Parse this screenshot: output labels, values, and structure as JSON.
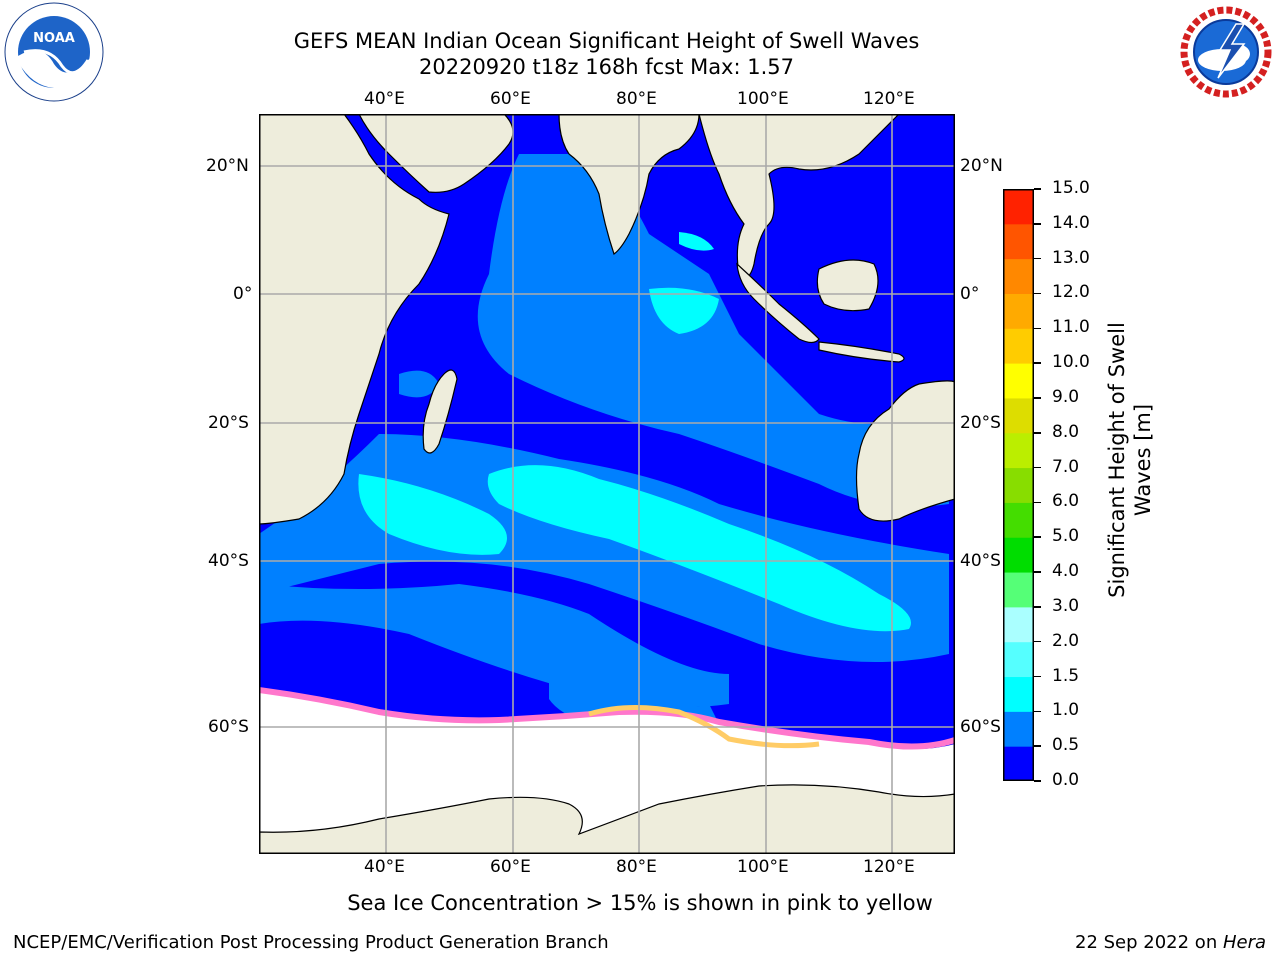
{
  "title": {
    "line1": "GEFS MEAN Indian Ocean Significant Height of Swell Waves",
    "line2": "20220920 t18z 168h fcst   Max: 1.57"
  },
  "map": {
    "lon_labels": [
      "40°E",
      "60°E",
      "80°E",
      "100°E",
      "120°E"
    ],
    "lat_labels": [
      "20°N",
      "0°",
      "20°S",
      "40°S",
      "60°S"
    ]
  },
  "colorbar": {
    "label_line1": "Significant Height of Swell",
    "label_line2": "Waves [m]",
    "ticks": [
      "0.0",
      "0.5",
      "1.0",
      "1.5",
      "2.0",
      "3.0",
      "4.0",
      "5.0",
      "6.0",
      "7.0",
      "8.0",
      "9.0",
      "10.0",
      "11.0",
      "12.0",
      "13.0",
      "14.0",
      "15.0"
    ],
    "colors": [
      "#0000ff",
      "#0080ff",
      "#00ffff",
      "#55ffff",
      "#aaffff",
      "#55ff77",
      "#00dd00",
      "#44dd00",
      "#88dd00",
      "#bbee00",
      "#dddd00",
      "#ffff00",
      "#ffcc00",
      "#ffaa00",
      "#ff8800",
      "#ff5500",
      "#ff2200"
    ]
  },
  "note": "Sea Ice Concentration > 15% is shown in pink to yellow",
  "footer": {
    "left": "NCEP/EMC/Verification Post Processing Product Generation Branch",
    "right_date": "22 Sep 2022 on ",
    "right_machine": "Hera"
  },
  "logos": {
    "noaa_text": "NOAA",
    "nws_text": "NATIONAL WEATHER SERVICE"
  }
}
